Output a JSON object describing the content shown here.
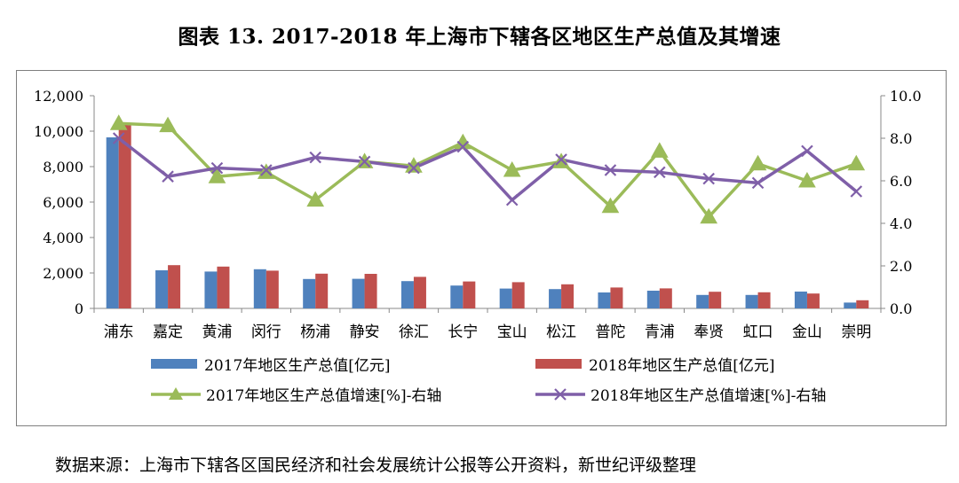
{
  "title": "图表 13. 2017-2018 年上海市下辖各区地区生产总值及其增速",
  "source": "数据来源：上海市下辖各区国民经济和社会发展统计公报等公开资料，新世纪评级整理",
  "chart_data": {
    "type": "bar+line",
    "categories": [
      "浦东",
      "嘉定",
      "黄浦",
      "闵行",
      "杨浦",
      "静安",
      "徐汇",
      "长宁",
      "宝山",
      "松江",
      "普陀",
      "青浦",
      "奉贤",
      "虹口",
      "金山",
      "崇明"
    ],
    "left_axis": {
      "min": 0,
      "max": 12000,
      "ticks": [
        "0",
        "2,000",
        "4,000",
        "6,000",
        "8,000",
        "10,000",
        "12,000"
      ]
    },
    "right_axis": {
      "min": 0,
      "max": 10,
      "ticks": [
        "0.0",
        "2.0",
        "4.0",
        "6.0",
        "8.0",
        "10.0"
      ]
    },
    "series": [
      {
        "name": "2017年地区生产总值[亿元]",
        "kind": "bar",
        "axis": "left",
        "color": "#4f81bd",
        "values": [
          9650,
          2150,
          2080,
          2210,
          1660,
          1670,
          1540,
          1290,
          1120,
          1090,
          900,
          1000,
          760,
          760,
          950,
          330
        ]
      },
      {
        "name": "2018年地区生产总值[亿元]",
        "kind": "bar",
        "axis": "left",
        "color": "#c0504d",
        "values": [
          10460,
          2440,
          2360,
          2130,
          1960,
          1950,
          1780,
          1520,
          1480,
          1360,
          1180,
          1130,
          940,
          910,
          840,
          460
        ]
      },
      {
        "name": "2017年地区生产总值增速[%]-右轴",
        "kind": "line",
        "marker": "triangle",
        "axis": "right",
        "color": "#9bbb59",
        "values": [
          8.7,
          8.6,
          6.2,
          6.4,
          5.1,
          6.9,
          6.7,
          7.8,
          6.5,
          6.9,
          4.8,
          7.4,
          4.3,
          6.8,
          6.0,
          6.8
        ]
      },
      {
        "name": "2018年地区生产总值增速[%]-右轴",
        "kind": "line",
        "marker": "x",
        "axis": "right",
        "color": "#7f5fa8",
        "values": [
          8.0,
          6.2,
          6.6,
          6.5,
          7.1,
          6.9,
          6.6,
          7.6,
          5.1,
          7.0,
          6.5,
          6.4,
          6.1,
          5.9,
          7.4,
          5.5
        ]
      }
    ],
    "legend_position": "bottom"
  }
}
